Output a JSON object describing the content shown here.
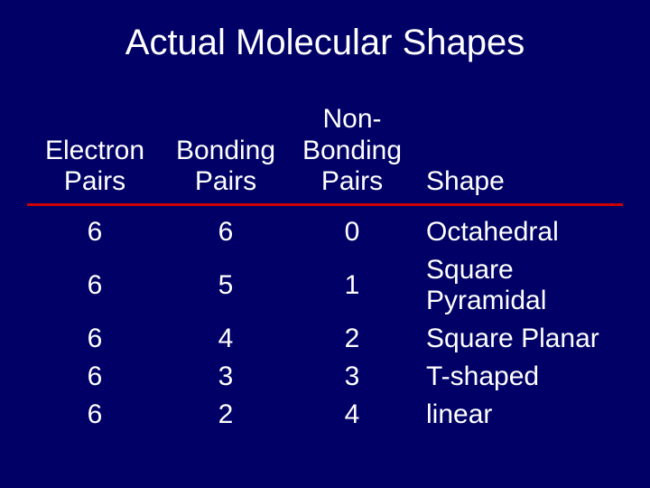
{
  "title": "Actual Molecular Shapes",
  "background_color": "#000066",
  "text_color": "#ffffff",
  "divider_color": "#cc0000",
  "title_fontsize": 40,
  "cell_fontsize": 30,
  "columns": {
    "col1": {
      "line1": "Electron",
      "line2": "Pairs"
    },
    "col2": {
      "line1": "Bonding",
      "line2": "Pairs"
    },
    "col3": {
      "line1": "Non-",
      "line2": "Bonding",
      "line3": "Pairs"
    },
    "col4": {
      "line1": "Shape"
    }
  },
  "rows": [
    {
      "electron": "6",
      "bonding": "6",
      "nonbonding": "0",
      "shape": "Octahedral"
    },
    {
      "electron": "6",
      "bonding": "5",
      "nonbonding": "1",
      "shape": "Square Pyramidal"
    },
    {
      "electron": "6",
      "bonding": "4",
      "nonbonding": "2",
      "shape": "Square Planar"
    },
    {
      "electron": "6",
      "bonding": "3",
      "nonbonding": "3",
      "shape": "T-shaped"
    },
    {
      "electron": "6",
      "bonding": "2",
      "nonbonding": "4",
      "shape": "linear"
    }
  ]
}
